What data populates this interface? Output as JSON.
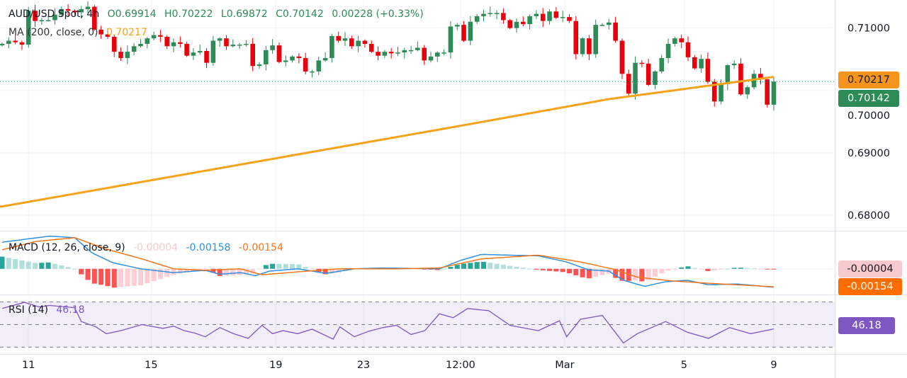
{
  "header": {
    "symbol": "AUD/USD Spot, 4h",
    "open": "O0.69914",
    "high": "H0.70222",
    "low": "L0.69872",
    "close": "C0.70142",
    "change": "0.00228 (+0.33%)"
  },
  "ma_legend": {
    "label": "MA (200, close, 0)",
    "value": "0.70217"
  },
  "macd_legend": {
    "label": "MACD (12, 26, close, 9)",
    "hist": "-0.00004",
    "macd": "-0.00158",
    "signal": "-0.00154"
  },
  "rsi_legend": {
    "label": "RSI (14)",
    "value": "46.18"
  },
  "price_labels": {
    "ma": "0.70217",
    "last": "0.70142",
    "macd_hist": "-0.00004",
    "macd_signal": "-0.00154",
    "rsi": "46.18"
  },
  "colors": {
    "up": "#2e8b57",
    "down": "#e8000b",
    "ma": "#f7a21b",
    "macd": "#2f8fe0",
    "signal": "#f4761a",
    "rsi": "#7e57c2",
    "last_bg": "#2e8b57",
    "ma_bg": "#f7941d",
    "hist_bg": "#f8c9cc",
    "signal_bg": "#ff6d00"
  },
  "chart_data": {
    "type": "candlestick",
    "title": "AUD/USD Spot, 4h",
    "ylim": [
      0.6775,
      0.7145
    ],
    "yticks": [
      "0.71000",
      "0.70000",
      "0.69000",
      "0.68000"
    ],
    "ytick_values": [
      0.71,
      0.7,
      0.69,
      0.68
    ],
    "xticks": [
      {
        "label": "11",
        "index": 4
      },
      {
        "label": "15",
        "index": 22.6
      },
      {
        "label": "19",
        "index": 41.5
      },
      {
        "label": "23",
        "index": 54.8
      },
      {
        "label": "12:00",
        "index": 69.5
      },
      {
        "label": "Mar",
        "index": 85.3
      },
      {
        "label": "5",
        "index": 103.4
      },
      {
        "label": "9",
        "index": 117
      }
    ],
    "first_open": 0.70722,
    "closes": [
      0.70747,
      0.70797,
      0.70772,
      0.70734,
      0.71278,
      0.71114,
      0.71127,
      0.71127,
      0.71215,
      0.71304,
      0.71278,
      0.71253,
      0.71304,
      0.71342,
      0.70975,
      0.70899,
      0.70861,
      0.7062,
      0.70519,
      0.7062,
      0.70709,
      0.70747,
      0.70835,
      0.70886,
      0.70861,
      0.70709,
      0.70772,
      0.70747,
      0.70557,
      0.70608,
      0.70633,
      0.70443,
      0.70797,
      0.70835,
      0.70709,
      0.70734,
      0.70734,
      0.70747,
      0.70392,
      0.70418,
      0.70646,
      0.70722,
      0.70456,
      0.70481,
      0.70544,
      0.70519,
      0.70304,
      0.70304,
      0.70481,
      0.70519,
      0.70873,
      0.70797,
      0.70835,
      0.70709,
      0.70797,
      0.70747,
      0.7062,
      0.70557,
      0.7062,
      0.70595,
      0.70608,
      0.70646,
      0.70646,
      0.70684,
      0.70481,
      0.70544,
      0.70608,
      0.70608,
      0.71025,
      0.71051,
      0.70797,
      0.71101,
      0.7119,
      0.71228,
      0.71241,
      0.71241,
      0.71127,
      0.71,
      0.71101,
      0.71063,
      0.7119,
      0.71228,
      0.71114,
      0.71266,
      0.71165,
      0.71177,
      0.71114,
      0.70582,
      0.70835,
      0.70582,
      0.71051,
      0.71051,
      0.71089,
      0.70797,
      0.70266,
      0.69949,
      0.70443,
      0.7043,
      0.70089,
      0.70304,
      0.70519,
      0.70747,
      0.70835,
      0.70772,
      0.70532,
      0.70354,
      0.70506,
      0.70139,
      0.69823,
      0.70101,
      0.70405,
      0.7043,
      0.69937,
      0.70051,
      0.70266,
      0.70177,
      0.69772,
      0.70142
    ],
    "ma200": [
      [
        0,
        0.68139
      ],
      [
        68,
        0.69405
      ],
      [
        92,
        0.69861
      ],
      [
        117,
        0.70217
      ]
    ],
    "macd": {
      "ylim": [
        -0.0022,
        0.0032
      ],
      "macd": [
        [
          0,
          0.00228
        ],
        [
          7.2,
          0.0028
        ],
        [
          11,
          0.00267
        ],
        [
          13.6,
          0.00137
        ],
        [
          16.8,
          0.00052
        ],
        [
          21,
          0
        ],
        [
          26,
          -0.00033
        ],
        [
          30.8,
          -0.00013
        ],
        [
          33,
          -0.00046
        ],
        [
          36.2,
          -0.00033
        ],
        [
          38.4,
          -0.00059
        ],
        [
          40.5,
          -0.0002
        ],
        [
          44.8,
          0
        ],
        [
          49.1,
          -0.00039
        ],
        [
          53.4,
          0
        ],
        [
          57.7,
          7e-05
        ],
        [
          66.3,
          0
        ],
        [
          69.5,
          0.00072
        ],
        [
          72.7,
          0.00124
        ],
        [
          77,
          0.00117
        ],
        [
          81.3,
          0.00111
        ],
        [
          85.6,
          0.00059
        ],
        [
          88.8,
          -7e-05
        ],
        [
          92,
          -0.0002
        ],
        [
          94.2,
          -0.00098
        ],
        [
          97.4,
          -0.0015
        ],
        [
          100.6,
          -0.00111
        ],
        [
          103.9,
          -0.00098
        ],
        [
          107.1,
          -0.00137
        ],
        [
          111.4,
          -0.0013
        ],
        [
          117,
          -0.00158
        ]
      ],
      "signal": [
        [
          0,
          0.00163
        ],
        [
          5.1,
          0.00234
        ],
        [
          11,
          0.00267
        ],
        [
          15.8,
          0.00169
        ],
        [
          21.2,
          0.00085
        ],
        [
          26,
          0
        ],
        [
          30.8,
          -0.00013
        ],
        [
          36.2,
          0
        ],
        [
          39.4,
          -0.00052
        ],
        [
          44.8,
          -0.00026
        ],
        [
          51.2,
          0
        ],
        [
          59.8,
          0
        ],
        [
          66.3,
          7e-05
        ],
        [
          72.7,
          0.00085
        ],
        [
          81.3,
          0.00117
        ],
        [
          87.7,
          0.00059
        ],
        [
          93,
          -7e-05
        ],
        [
          96.3,
          -0.00072
        ],
        [
          101.7,
          -0.00104
        ],
        [
          107.1,
          -0.00124
        ],
        [
          117,
          -0.00154
        ]
      ]
    },
    "rsi": {
      "ylim": [
        24,
        76
      ],
      "levels": [
        70,
        50,
        30
      ],
      "values": [
        [
          0,
          64.2
        ],
        [
          3.4,
          69.7
        ],
        [
          5.6,
          65.6
        ],
        [
          7.2,
          66.9
        ],
        [
          11,
          64.9
        ],
        [
          12,
          52.7
        ],
        [
          14.2,
          48
        ],
        [
          15.8,
          41.9
        ],
        [
          18,
          44.6
        ],
        [
          21.2,
          50
        ],
        [
          24.4,
          46.6
        ],
        [
          26,
          48.6
        ],
        [
          27.6,
          44.6
        ],
        [
          29.2,
          42.5
        ],
        [
          30.8,
          39.2
        ],
        [
          33,
          47.3
        ],
        [
          35.1,
          41.9
        ],
        [
          37.3,
          37.8
        ],
        [
          39.4,
          49.3
        ],
        [
          41,
          41.9
        ],
        [
          42.6,
          44.6
        ],
        [
          44.8,
          41.9
        ],
        [
          47,
          45.9
        ],
        [
          50.2,
          37.1
        ],
        [
          51.2,
          48
        ],
        [
          53.4,
          39.2
        ],
        [
          55.5,
          43.9
        ],
        [
          57.7,
          47.3
        ],
        [
          59.8,
          49.3
        ],
        [
          62,
          41.2
        ],
        [
          64.1,
          44.6
        ],
        [
          66.3,
          59.5
        ],
        [
          68.4,
          56.1
        ],
        [
          70.6,
          64.2
        ],
        [
          73.8,
          62.2
        ],
        [
          77,
          49.3
        ],
        [
          81.3,
          44.6
        ],
        [
          84.5,
          53.4
        ],
        [
          85.6,
          39.2
        ],
        [
          87.7,
          54.7
        ],
        [
          91,
          58.1
        ],
        [
          94.2,
          33.7
        ],
        [
          96.3,
          41.9
        ],
        [
          100.6,
          52.7
        ],
        [
          103.9,
          43.2
        ],
        [
          107.1,
          37.8
        ],
        [
          110.3,
          47.3
        ],
        [
          113.5,
          41.9
        ],
        [
          117,
          46.18
        ]
      ]
    }
  }
}
